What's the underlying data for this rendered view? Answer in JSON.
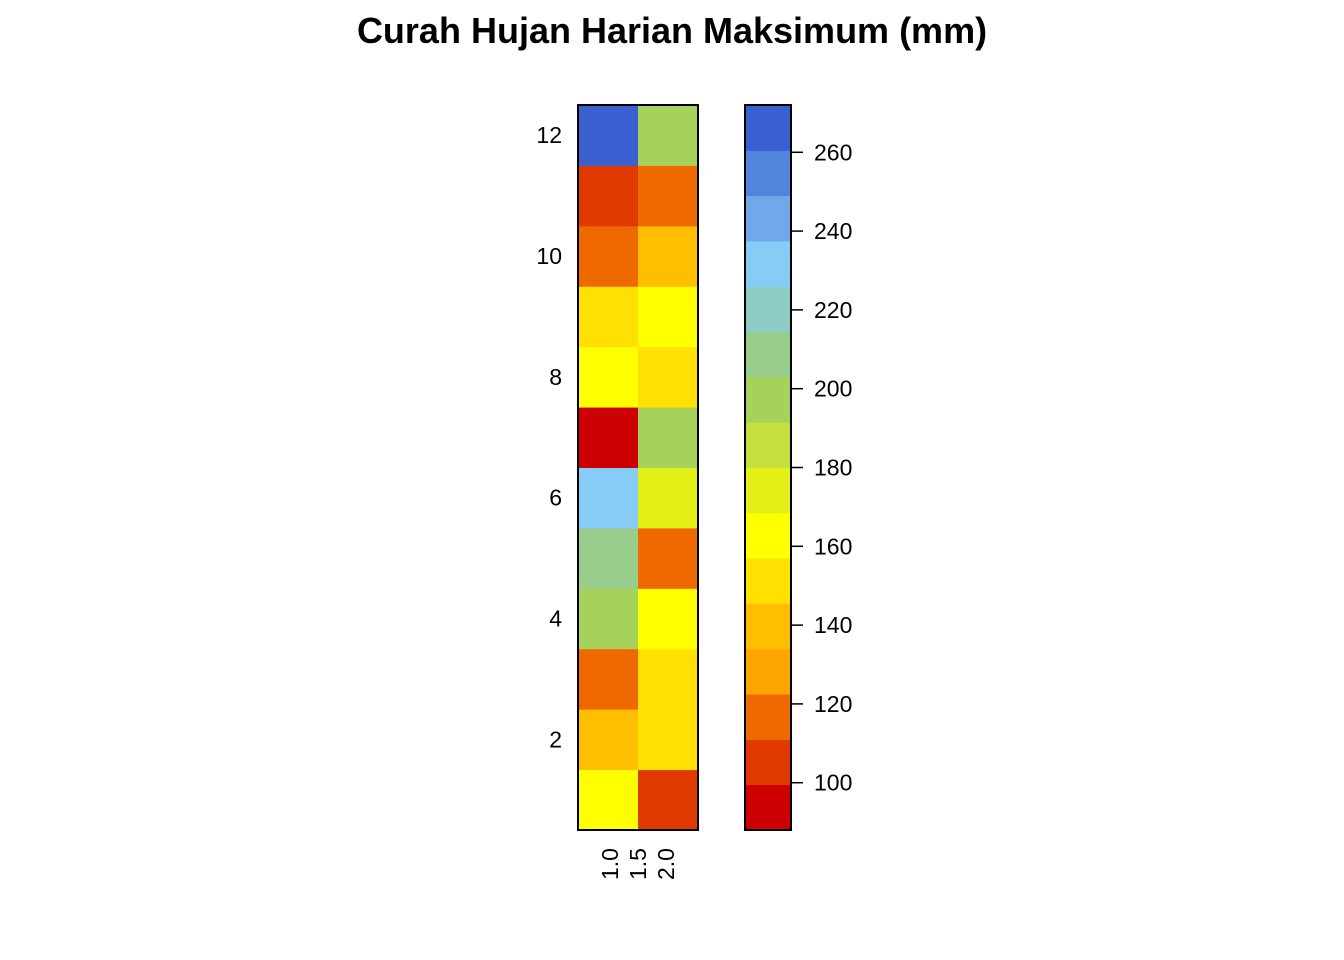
{
  "chart_data": {
    "type": "heatmap",
    "title": "Curah Hujan Harian Maksimum (mm)",
    "x_ticks": [
      "1.0",
      "1.5",
      "2.0"
    ],
    "y_ticks": [
      2,
      4,
      6,
      8,
      10,
      12
    ],
    "rows": [
      1,
      2,
      3,
      4,
      5,
      6,
      7,
      8,
      9,
      10,
      11,
      12
    ],
    "columns": [
      1,
      2
    ],
    "values": [
      [
        162,
        105
      ],
      [
        140,
        152
      ],
      [
        118,
        152
      ],
      [
        200,
        162
      ],
      [
        212,
        118
      ],
      [
        230,
        175
      ],
      [
        92,
        200
      ],
      [
        162,
        152
      ],
      [
        152,
        162
      ],
      [
        118,
        140
      ],
      [
        105,
        118
      ],
      [
        268,
        200
      ]
    ],
    "legend": {
      "ticks": [
        100,
        120,
        140,
        160,
        180,
        200,
        220,
        240,
        260
      ],
      "colors": [
        "#CC0000",
        "#E03A00",
        "#EE6A00",
        "#FFA500",
        "#FFBE00",
        "#FFE000",
        "#FFFF00",
        "#E2F018",
        "#C4E03C",
        "#A6D15A",
        "#98CD8C",
        "#90CCC6",
        "#86CCF6",
        "#70A8EA",
        "#5284DE",
        "#3A5FD0"
      ],
      "breaks": [
        88,
        99.5,
        111,
        122.5,
        134,
        145.5,
        157,
        168.5,
        180,
        191.5,
        203,
        214.5,
        226,
        237.5,
        249,
        260.5,
        272
      ]
    }
  }
}
